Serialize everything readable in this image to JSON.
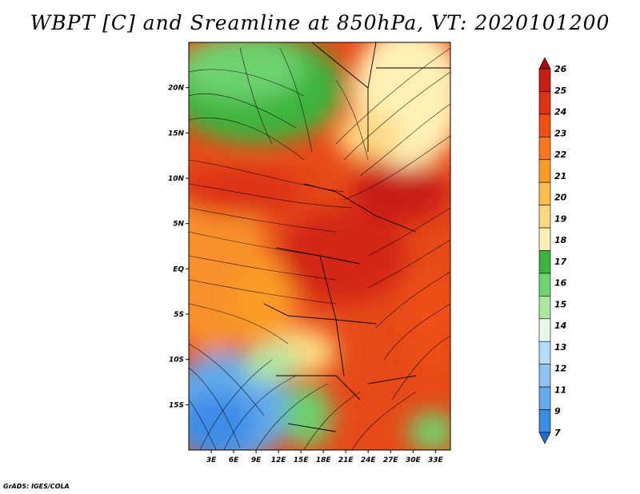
{
  "title": "WBPT [C] and Sreamline at 850hPa, VT: 2020101200",
  "credit": "GrADS: IGES/COLA",
  "map": {
    "lat_labels": [
      "20N",
      "15N",
      "10N",
      "5N",
      "EQ",
      "5S",
      "10S",
      "15S"
    ],
    "lat_values": [
      20,
      15,
      10,
      5,
      0,
      -5,
      -10,
      -15
    ],
    "lon_labels": [
      "3E",
      "6E",
      "9E",
      "12E",
      "15E",
      "18E",
      "21E",
      "24E",
      "27E",
      "30E",
      "33E"
    ],
    "lon_values": [
      3,
      6,
      9,
      12,
      15,
      18,
      21,
      24,
      27,
      30,
      33
    ],
    "lon_range": [
      0,
      35
    ],
    "lat_range": [
      -20,
      25
    ]
  },
  "colorbar": {
    "labels": [
      "26",
      "25",
      "24",
      "23",
      "22",
      "21",
      "20",
      "19",
      "18",
      "17",
      "16",
      "15",
      "14",
      "13",
      "12",
      "11",
      "9",
      "7"
    ],
    "colors": [
      "#a50f0f",
      "#c81e14",
      "#e03214",
      "#f05014",
      "#f7781e",
      "#fa9b28",
      "#fdbe50",
      "#fdd882",
      "#fef0b4",
      "#3cb43c",
      "#6ed26e",
      "#aee6a0",
      "#e6f8ea",
      "#b4dcf8",
      "#8cc3f0",
      "#64aaeb",
      "#3c8ce6",
      "#1e6ed2"
    ]
  },
  "legend": {
    "field": "WBPT [C]",
    "streamline": "Sreamline"
  }
}
